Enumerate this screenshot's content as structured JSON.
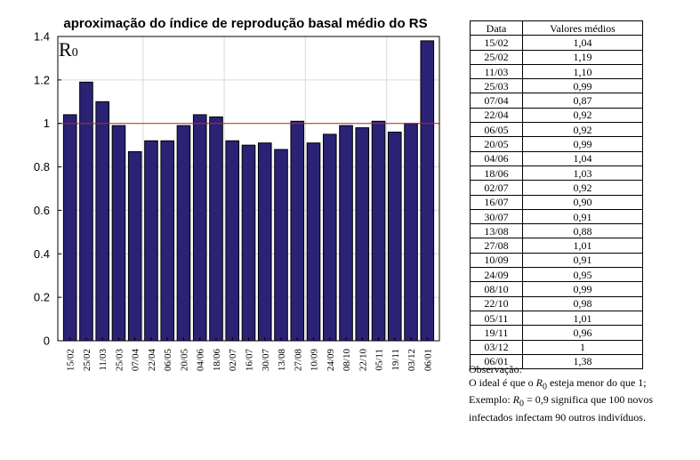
{
  "chart_data": {
    "type": "bar",
    "title": "aproximação do índice de reprodução basal médio do RS",
    "annotation": {
      "symbol": "R",
      "subscript": "0"
    },
    "categories": [
      "15/02",
      "25/02",
      "11/03",
      "25/03",
      "07/04",
      "22/04",
      "06/05",
      "20/05",
      "04/06",
      "18/06",
      "02/07",
      "16/07",
      "30/07",
      "13/08",
      "27/08",
      "10/09",
      "24/09",
      "08/10",
      "22/10",
      "05/11",
      "19/11",
      "03/12",
      "06/01"
    ],
    "values": [
      1.04,
      1.19,
      1.1,
      0.99,
      0.87,
      0.92,
      0.92,
      0.99,
      1.04,
      1.03,
      0.92,
      0.9,
      0.91,
      0.88,
      1.01,
      0.91,
      0.95,
      0.99,
      0.98,
      1.01,
      0.96,
      1.0,
      1.38
    ],
    "ylim": [
      0,
      1.4
    ],
    "yticks": [
      "0",
      "0.2",
      "0.4",
      "0.6",
      "0.8",
      "1",
      "1.2",
      "1.4"
    ],
    "reference_line": 1,
    "grid": true,
    "colors": {
      "bar": "#2a2275",
      "reference_line": "#cc2222",
      "grid": "#d9d9d9"
    }
  },
  "table": {
    "headers": [
      "Data",
      "Valores médios"
    ],
    "rows": [
      [
        "15/02",
        "1,04"
      ],
      [
        "25/02",
        "1,19"
      ],
      [
        "11/03",
        "1,10"
      ],
      [
        "25/03",
        "0,99"
      ],
      [
        "07/04",
        "0,87"
      ],
      [
        "22/04",
        "0,92"
      ],
      [
        "06/05",
        "0,92"
      ],
      [
        "20/05",
        "0,99"
      ],
      [
        "04/06",
        "1,04"
      ],
      [
        "18/06",
        "1,03"
      ],
      [
        "02/07",
        "0,92"
      ],
      [
        "16/07",
        "0,90"
      ],
      [
        "30/07",
        "0,91"
      ],
      [
        "13/08",
        "0,88"
      ],
      [
        "27/08",
        "1,01"
      ],
      [
        "10/09",
        "0,91"
      ],
      [
        "24/09",
        "0,95"
      ],
      [
        "08/10",
        "0,99"
      ],
      [
        "22/10",
        "0,98"
      ],
      [
        "05/11",
        "1,01"
      ],
      [
        "19/11",
        "0,96"
      ],
      [
        "03/12",
        "1"
      ],
      [
        "06/01",
        "1,38"
      ]
    ]
  },
  "note": {
    "heading": "Observação:",
    "line1_pre": "O ideal é que o ",
    "line1_var": "R",
    "line1_sub": "0",
    "line1_post": " esteja menor do que 1;",
    "line2_pre": "Exemplo: ",
    "line2_var": "R",
    "line2_sub": "0",
    "line2_eq": " = 0,9 significa que 100 novos",
    "line3": "infectados infectam 90 outros indivíduos."
  }
}
